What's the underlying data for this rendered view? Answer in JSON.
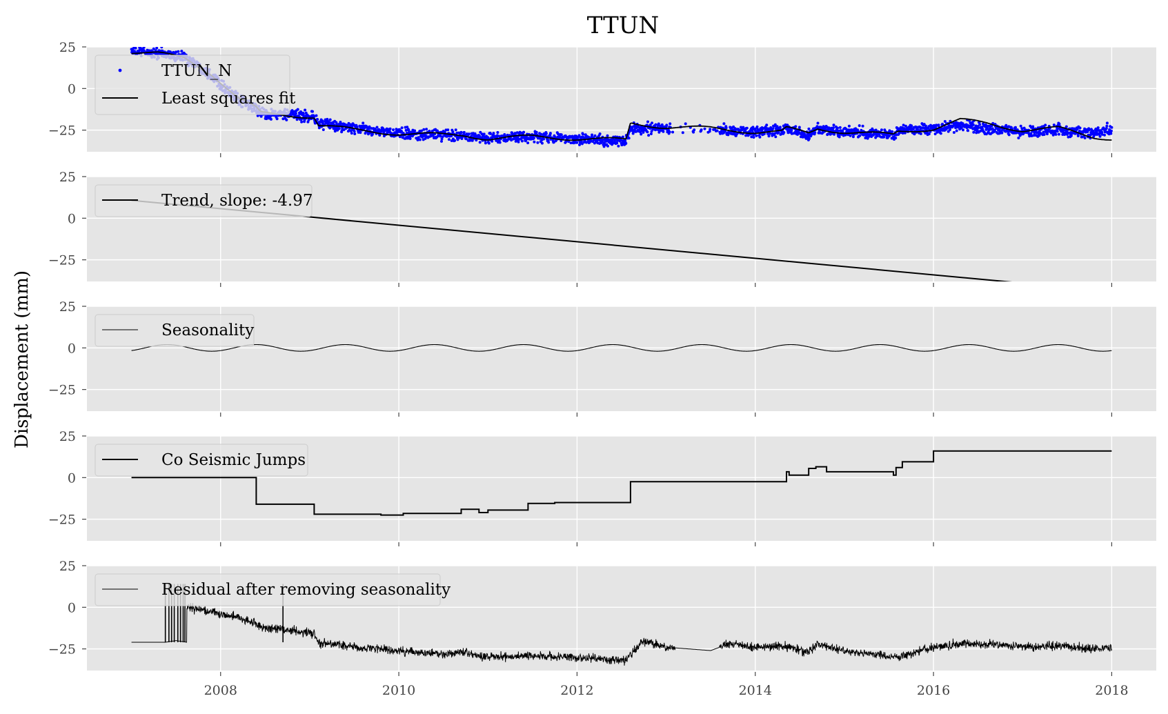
{
  "figure": {
    "title": "TTUN",
    "ylabel": "Displacement (mm)",
    "panel_background": "#e5e5e5",
    "grid_color": "#ffffff"
  },
  "chart_data": [
    {
      "type": "scatter",
      "panel": 1,
      "xlim": [
        2006.5,
        2018.5
      ],
      "ylim": [
        -38,
        25
      ],
      "yticks": [
        25,
        0,
        -25
      ],
      "xticks": [
        2008,
        2010,
        2012,
        2014,
        2016,
        2018
      ],
      "grid": true,
      "legend_position": "top-left",
      "series": [
        {
          "name": "TTUN_N",
          "style": "points",
          "color": "#0000ff",
          "x": [
            2007.0,
            2007.3,
            2007.6,
            2007.9,
            2008.2,
            2008.4,
            2008.45,
            2008.8,
            2009.05,
            2009.1,
            2009.5,
            2010.0,
            2010.5,
            2010.75,
            2011.0,
            2011.5,
            2012.0,
            2012.55,
            2012.6,
            2013.0,
            2013.5,
            2014.0,
            2014.3,
            2014.35,
            2014.6,
            2014.7,
            2015.0,
            2015.55,
            2015.6,
            2016.0,
            2016.3,
            2016.6,
            2017.0,
            2017.4,
            2017.8,
            2018.0
          ],
          "y": [
            23,
            21,
            19,
            8,
            -7,
            -12,
            -15,
            -16,
            -17,
            -21,
            -24,
            -27,
            -28,
            -28,
            -30,
            -29,
            -30,
            -32,
            -24,
            -24,
            -25,
            -26,
            -25,
            -24,
            -28,
            -24,
            -26,
            -28,
            -26,
            -24,
            -22,
            -24,
            -26,
            -25,
            -26,
            -24
          ]
        },
        {
          "name": "Least squares fit",
          "style": "line",
          "color": "#000000",
          "x": [
            2007.0,
            2007.3,
            2007.6,
            2007.9,
            2008.2,
            2008.4,
            2008.45,
            2008.8,
            2009.05,
            2009.1,
            2009.5,
            2010.0,
            2010.5,
            2010.75,
            2011.0,
            2011.5,
            2012.0,
            2012.55,
            2012.6,
            2013.0,
            2013.5,
            2014.0,
            2014.3,
            2014.35,
            2014.6,
            2014.7,
            2015.0,
            2015.55,
            2015.6,
            2016.0,
            2016.3,
            2016.6,
            2017.0,
            2017.4,
            2017.8,
            2018.0
          ],
          "y": [
            22,
            21,
            18,
            9,
            -6,
            -12,
            -15,
            -16,
            -17,
            -22,
            -25,
            -27,
            -28,
            -28,
            -30,
            -29,
            -30,
            -31,
            -21,
            -23,
            -24,
            -26,
            -26,
            -24,
            -27,
            -24,
            -26,
            -28,
            -26,
            -24,
            -19,
            -21,
            -25,
            -24,
            -29,
            -30
          ]
        }
      ]
    },
    {
      "type": "line",
      "panel": 2,
      "xlim": [
        2006.5,
        2018.5
      ],
      "ylim": [
        -38,
        25
      ],
      "yticks": [
        25,
        0,
        -25
      ],
      "grid": true,
      "legend_position": "top-left",
      "series": [
        {
          "name": "Trend, slope: -4.97",
          "color": "#000000",
          "x": [
            2007.0,
            2018.0
          ],
          "y": [
            10.7,
            -43.97
          ]
        }
      ]
    },
    {
      "type": "line",
      "panel": 3,
      "xlim": [
        2006.5,
        2018.5
      ],
      "ylim": [
        -38,
        25
      ],
      "yticks": [
        25,
        0,
        -25
      ],
      "grid": true,
      "legend_position": "top-left",
      "series": [
        {
          "name": "Seasonality",
          "color": "#000000",
          "amplitude": 2,
          "period_years": 1,
          "peak_time": 2007.4,
          "x_range": [
            2007.0,
            2018.0
          ]
        }
      ]
    },
    {
      "type": "line",
      "panel": 4,
      "xlim": [
        2006.5,
        2018.5
      ],
      "ylim": [
        -38,
        25
      ],
      "yticks": [
        25,
        0,
        -25
      ],
      "grid": true,
      "legend_position": "top-left",
      "series": [
        {
          "name": "Co Seismic Jumps",
          "color": "#000000",
          "style": "step",
          "x": [
            2007.0,
            2008.4,
            2008.4,
            2009.05,
            2009.05,
            2009.8,
            2009.8,
            2010.05,
            2010.05,
            2010.7,
            2010.7,
            2010.9,
            2010.9,
            2011.0,
            2011.0,
            2011.45,
            2011.45,
            2011.75,
            2011.75,
            2012.6,
            2012.6,
            2014.35,
            2014.35,
            2014.38,
            2014.38,
            2014.6,
            2014.6,
            2014.68,
            2014.68,
            2014.8,
            2014.8,
            2015.55,
            2015.55,
            2015.58,
            2015.58,
            2015.65,
            2015.65,
            2016.0,
            2016.0,
            2018.0
          ],
          "y": [
            0,
            0,
            -16,
            -16,
            -22,
            -22,
            -22.5,
            -22.5,
            -21.5,
            -21.5,
            -19,
            -19,
            -21,
            -21,
            -19.5,
            -19.5,
            -15.5,
            -15.5,
            -15,
            -15,
            -2.5,
            -2.5,
            3.5,
            3.5,
            1.5,
            1.5,
            5.5,
            5.5,
            6.5,
            6.5,
            3.5,
            3.5,
            1.5,
            1.5,
            6,
            6,
            9.5,
            9.5,
            16,
            16
          ]
        }
      ]
    },
    {
      "type": "line",
      "panel": 5,
      "xlim": [
        2006.5,
        2018.5
      ],
      "ylim": [
        -38,
        25
      ],
      "yticks": [
        25,
        0,
        -25
      ],
      "xticks": [
        2008,
        2010,
        2012,
        2014,
        2016,
        2018
      ],
      "xticklabels": [
        "2008",
        "2010",
        "2012",
        "2014",
        "2016",
        "2018"
      ],
      "grid": true,
      "legend_position": "top-left",
      "series": [
        {
          "name": "Residual after removing seasonality",
          "color": "#000000",
          "x": [
            2007.0,
            2007.38,
            2007.5,
            2007.62,
            2007.62,
            2007.9,
            2008.2,
            2008.4,
            2008.45,
            2008.8,
            2009.05,
            2009.1,
            2009.5,
            2010.0,
            2010.5,
            2010.75,
            2011.0,
            2011.5,
            2012.0,
            2012.55,
            2012.75,
            2013.0,
            2013.5,
            2013.7,
            2014.0,
            2014.3,
            2014.6,
            2014.7,
            2015.0,
            2015.6,
            2016.0,
            2016.3,
            2016.6,
            2017.0,
            2017.4,
            2017.8,
            2018.0
          ],
          "y": [
            -21,
            -21,
            -20,
            -21,
            0,
            -3,
            -6,
            -10,
            -12,
            -14,
            -16,
            -21,
            -24,
            -26,
            -28,
            -27,
            -30,
            -29,
            -30,
            -32,
            -20,
            -24,
            -26,
            -22,
            -24,
            -23,
            -27,
            -22,
            -26,
            -30,
            -24,
            -22,
            -22,
            -24,
            -23,
            -25,
            -24
          ]
        }
      ]
    }
  ]
}
